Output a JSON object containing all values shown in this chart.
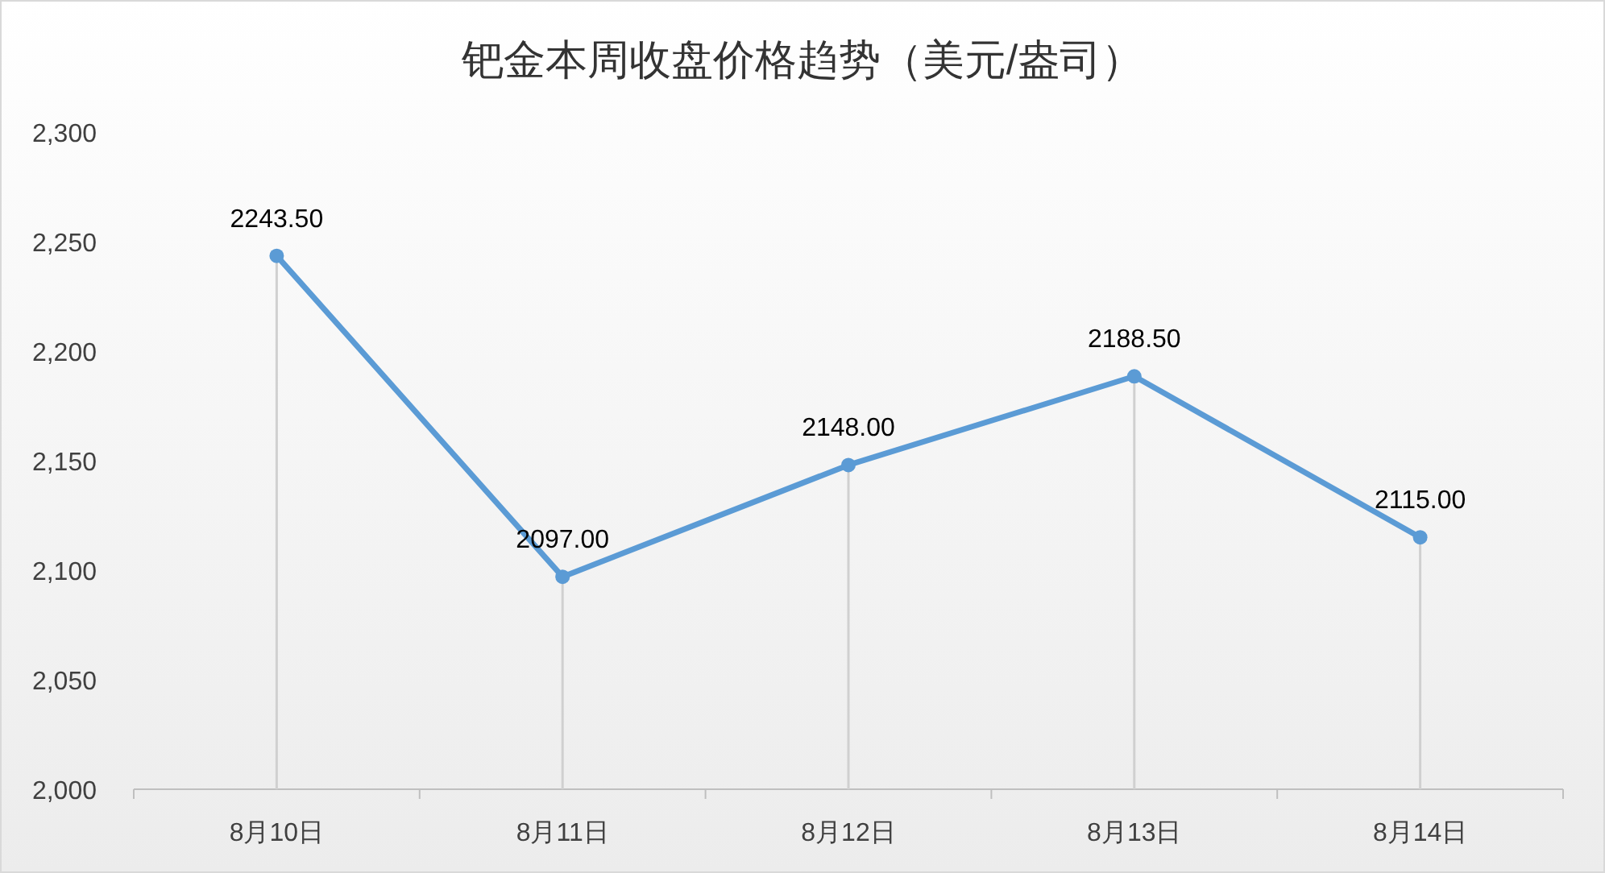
{
  "chart_data": {
    "type": "line",
    "title": "钯金本周收盘价格趋势（美元/盎司）",
    "categories": [
      "8月10日",
      "8月11日",
      "8月12日",
      "8月13日",
      "8月14日"
    ],
    "series": [
      {
        "color": "#5b9bd5",
        "values": [
          2243.5,
          2097,
          2148,
          2188.5,
          2115
        ],
        "value_labels": [
          "2243.50",
          "2097.00",
          "2148.00",
          "2188.50",
          "2115.00"
        ]
      }
    ],
    "ylim": [
      2000,
      2300
    ],
    "yticks": [
      {
        "value": 2000,
        "label": "2,000"
      },
      {
        "value": 2050,
        "label": "2,050"
      },
      {
        "value": 2100,
        "label": "2,100"
      },
      {
        "value": 2150,
        "label": "2,150"
      },
      {
        "value": 2200,
        "label": "2,200"
      },
      {
        "value": 2250,
        "label": "2,250"
      },
      {
        "value": 2300,
        "label": "2,300"
      }
    ],
    "marker": "circle",
    "line_style": "solid"
  }
}
